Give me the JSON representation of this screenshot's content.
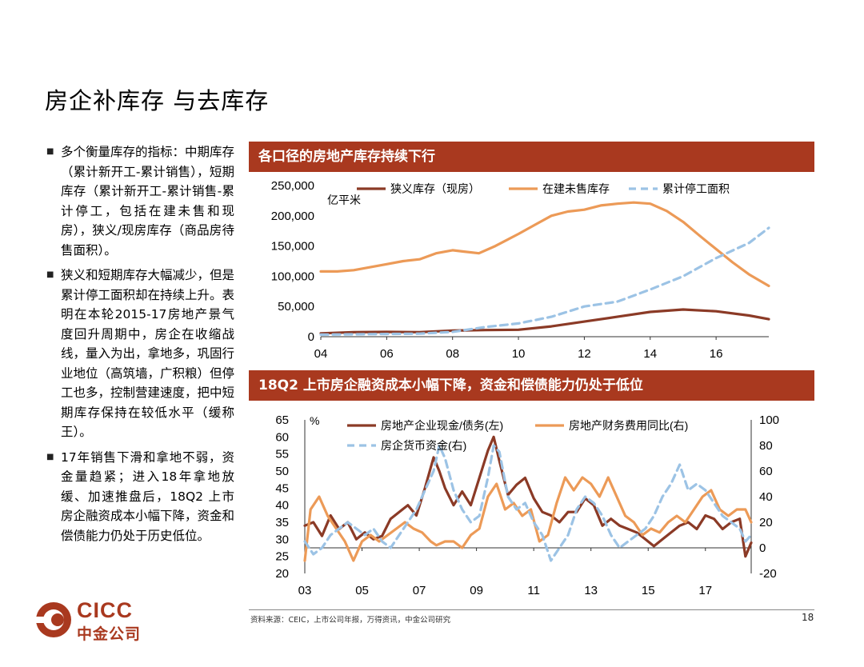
{
  "page": {
    "title": "房企补库存 与去库存",
    "bullets": [
      "多个衡量库存的指标：中期库存（累计新开工-累计销售），短期库存（累计新开工-累计销售-累计停工，包括在建未售和现房），狭义/现房库存（商品房待售面积）。",
      "狭义和短期库存大幅减少，但是累计停工面积却在持续上升。表明在本轮2015-17房地产景气度回升周期中，房企在收缩战线，量入为出，拿地多，巩固行业地位（高筑墙，广积粮）但停工也多，控制营建速度，把中短期库存保持在较低水平（缓称王）。",
      "17年销售下滑和拿地不弱，资金量趋紧；进入18年拿地放缓、加速推盘后，18Q2 上市房企融资成本小幅下降，资金和偿债能力仍处于历史低位。"
    ],
    "bullet_marker": "■",
    "source": "资料来源：CEIC，上市公司年报，万得资讯，中金公司研究",
    "page_number": "18",
    "logo_en": "CICC",
    "logo_cn": "中金公司",
    "colors": {
      "brand": "#a9391f",
      "dark_line": "#8b3a26",
      "orange_line": "#ec9a57",
      "blue_line": "#9cc3e5"
    }
  },
  "chart_data": [
    {
      "type": "line",
      "title": "各口径的房地产库存持续下行",
      "ylabel": "亿平米",
      "ylim": [
        0,
        250000
      ],
      "yticks": [
        "0",
        "50,000",
        "100,000",
        "150,000",
        "200,000",
        "250,000"
      ],
      "xlim": [
        2004,
        2017.6
      ],
      "xticks": [
        "04",
        "06",
        "08",
        "10",
        "12",
        "14",
        "16"
      ],
      "series": [
        {
          "name": "狭义库存（现房）",
          "style": "dark",
          "x": [
            2004,
            2005,
            2006,
            2007,
            2008,
            2009,
            2010,
            2011,
            2012,
            2013,
            2014,
            2015,
            2016,
            2017,
            2017.6
          ],
          "y": [
            5500,
            7500,
            8000,
            7500,
            10000,
            11000,
            11500,
            17000,
            25000,
            33000,
            41000,
            45000,
            42000,
            35000,
            29000
          ]
        },
        {
          "name": "在建未售库存",
          "style": "orange",
          "x": [
            2004,
            2004.5,
            2005,
            2005.5,
            2006,
            2006.5,
            2007,
            2007.5,
            2008,
            2008.3,
            2008.8,
            2009.3,
            2010,
            2010.5,
            2011,
            2011.5,
            2012,
            2012.5,
            2013,
            2013.5,
            2014,
            2014.5,
            2015,
            2015.5,
            2016,
            2016.5,
            2017,
            2017.6
          ],
          "y": [
            108000,
            108000,
            110000,
            115000,
            120000,
            125000,
            128000,
            138000,
            143000,
            141000,
            138000,
            150000,
            170000,
            185000,
            200000,
            207000,
            210000,
            217000,
            220000,
            222000,
            220000,
            208000,
            190000,
            167000,
            145000,
            123000,
            103000,
            84000
          ]
        },
        {
          "name": "累计停工面积",
          "style": "blue",
          "x": [
            2004,
            2005,
            2006,
            2007,
            2008,
            2009,
            2010,
            2011,
            2012,
            2013,
            2014,
            2015,
            2016,
            2017,
            2017.6
          ],
          "y": [
            3500,
            4000,
            4500,
            5000,
            8000,
            16000,
            22000,
            33000,
            50000,
            58000,
            78000,
            100000,
            130000,
            155000,
            180000
          ]
        }
      ]
    },
    {
      "type": "line",
      "title": "18Q2 上市房企融资成本小幅下降，资金和偿债能力仍处于低位",
      "ylabel_left": "%",
      "ylim_left": [
        20,
        65
      ],
      "yticks_left": [
        "20",
        "25",
        "30",
        "35",
        "40",
        "45",
        "50",
        "55",
        "60",
        "65"
      ],
      "ylim_right": [
        -20,
        100
      ],
      "yticks_right": [
        "-20",
        "0",
        "20",
        "40",
        "60",
        "80",
        "100"
      ],
      "xlim": [
        2003,
        2018.6
      ],
      "xticks": [
        "03",
        "05",
        "07",
        "09",
        "11",
        "13",
        "15",
        "17"
      ],
      "series": [
        {
          "name": "房地产企业现金/债务(左)",
          "style": "dark",
          "axis": "left",
          "x": [
            2003,
            2003.3,
            2003.6,
            2003.9,
            2004.2,
            2004.5,
            2004.8,
            2005.1,
            2005.4,
            2005.7,
            2006.0,
            2006.3,
            2006.6,
            2006.9,
            2007.2,
            2007.5,
            2007.7,
            2007.9,
            2008.2,
            2008.5,
            2008.8,
            2009.1,
            2009.4,
            2009.6,
            2009.8,
            2010.1,
            2010.4,
            2010.7,
            2011.0,
            2011.3,
            2011.6,
            2011.9,
            2012.2,
            2012.5,
            2012.8,
            2013.1,
            2013.4,
            2013.7,
            2014.0,
            2014.3,
            2014.6,
            2014.9,
            2015.2,
            2015.5,
            2015.8,
            2016.1,
            2016.4,
            2016.7,
            2017.0,
            2017.3,
            2017.6,
            2017.9,
            2018.2,
            2018.4,
            2018.6
          ],
          "y": [
            34,
            35,
            31,
            37,
            33,
            35,
            30,
            32,
            30,
            31,
            36,
            38,
            40,
            37,
            45,
            54,
            50,
            45,
            40,
            44,
            40,
            48,
            56,
            60,
            53,
            43,
            46,
            48,
            42,
            38,
            37,
            35,
            38,
            38,
            42,
            40,
            34,
            36,
            34,
            33,
            32,
            30,
            28,
            30,
            32,
            34,
            35,
            33,
            37,
            36,
            33,
            35,
            36,
            25,
            29
          ]
        },
        {
          "name": "房地产财务费用同比(右)",
          "style": "orange",
          "axis": "right",
          "x": [
            2003,
            2003.2,
            2003.5,
            2003.8,
            2004.1,
            2004.4,
            2004.7,
            2005.0,
            2005.3,
            2005.6,
            2005.9,
            2006.2,
            2006.5,
            2006.8,
            2007.1,
            2007.4,
            2007.6,
            2007.9,
            2008.2,
            2008.5,
            2008.8,
            2009.1,
            2009.4,
            2009.7,
            2010.0,
            2010.3,
            2010.6,
            2010.9,
            2011.2,
            2011.5,
            2011.8,
            2012.1,
            2012.4,
            2012.7,
            2013.0,
            2013.3,
            2013.6,
            2013.9,
            2014.2,
            2014.5,
            2014.8,
            2015.1,
            2015.4,
            2015.7,
            2016.0,
            2016.3,
            2016.6,
            2016.9,
            2017.2,
            2017.5,
            2017.8,
            2018.1,
            2018.4,
            2018.6
          ],
          "y": [
            -10,
            30,
            40,
            25,
            15,
            5,
            -10,
            5,
            10,
            5,
            10,
            15,
            20,
            15,
            12,
            5,
            2,
            5,
            5,
            0,
            10,
            15,
            40,
            50,
            30,
            35,
            25,
            30,
            5,
            10,
            35,
            55,
            45,
            55,
            50,
            40,
            55,
            40,
            25,
            20,
            10,
            15,
            12,
            20,
            25,
            20,
            30,
            40,
            45,
            30,
            25,
            30,
            30,
            20
          ]
        },
        {
          "name": "房企货币资金(右)",
          "style": "blue",
          "axis": "right",
          "x": [
            2003,
            2003.3,
            2003.6,
            2003.9,
            2004.2,
            2004.5,
            2004.8,
            2005.1,
            2005.4,
            2005.7,
            2006.0,
            2006.3,
            2006.6,
            2006.9,
            2007.2,
            2007.5,
            2007.7,
            2007.9,
            2008.2,
            2008.5,
            2008.8,
            2009.1,
            2009.4,
            2009.6,
            2009.8,
            2010.1,
            2010.4,
            2010.7,
            2011.0,
            2011.3,
            2011.6,
            2011.9,
            2012.2,
            2012.5,
            2012.8,
            2013.1,
            2013.4,
            2013.7,
            2014.0,
            2014.3,
            2014.6,
            2014.9,
            2015.2,
            2015.5,
            2015.8,
            2016.1,
            2016.4,
            2016.7,
            2017.0,
            2017.3,
            2017.6,
            2017.9,
            2018.2,
            2018.4,
            2018.6
          ],
          "y": [
            5,
            -5,
            0,
            10,
            15,
            20,
            15,
            10,
            15,
            5,
            0,
            10,
            20,
            30,
            45,
            60,
            80,
            70,
            45,
            30,
            20,
            25,
            55,
            80,
            75,
            40,
            30,
            35,
            20,
            10,
            -10,
            0,
            10,
            30,
            40,
            35,
            25,
            10,
            0,
            5,
            10,
            15,
            25,
            40,
            50,
            65,
            45,
            50,
            45,
            35,
            25,
            20,
            15,
            5,
            10
          ]
        }
      ]
    }
  ]
}
